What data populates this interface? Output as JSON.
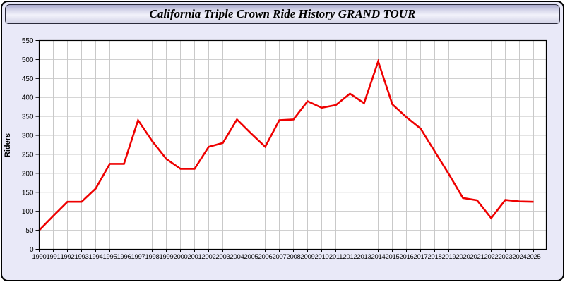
{
  "header": {
    "title": "California Triple Crown Ride History GRAND TOUR"
  },
  "chart_data": {
    "type": "line",
    "title": "California Triple Crown Ride History GRAND TOUR",
    "xlabel": "",
    "ylabel": "Riders",
    "x": [
      1990,
      1991,
      1992,
      1993,
      1994,
      1995,
      1996,
      1997,
      1998,
      1999,
      2000,
      2001,
      2002,
      2003,
      2004,
      2005,
      2006,
      2007,
      2008,
      2009,
      2010,
      2011,
      2012,
      2013,
      2014,
      2015,
      2016,
      2017,
      2018,
      2019,
      2020,
      2021,
      2022,
      2023,
      2024,
      2025
    ],
    "series": [
      {
        "name": "Riders",
        "color": "#ee0000",
        "values": [
          50,
          88,
          125,
          125,
          160,
          225,
          225,
          340,
          285,
          238,
          212,
          212,
          270,
          280,
          342,
          305,
          270,
          340,
          342,
          390,
          373,
          380,
          410,
          385,
          495,
          382,
          348,
          318,
          258,
          198,
          135,
          129,
          82,
          130,
          126,
          125
        ]
      }
    ],
    "ylim": [
      0,
      550
    ],
    "ytick_step": 50,
    "grid": true,
    "legend_position": "none",
    "plot_background": "#ffffff",
    "grid_color": "#c9c9c9",
    "axis_color": "#000000"
  },
  "colors": {
    "panel_background": "#e9e9f8",
    "panel_border": "#000000",
    "titlebar_gradient_top": "#a9a9cb",
    "titlebar_gradient_middle": "#f2f2fb",
    "titlebar_gradient_bottom": "#d2d2e6",
    "line": "#ee0000",
    "text": "#000000"
  }
}
